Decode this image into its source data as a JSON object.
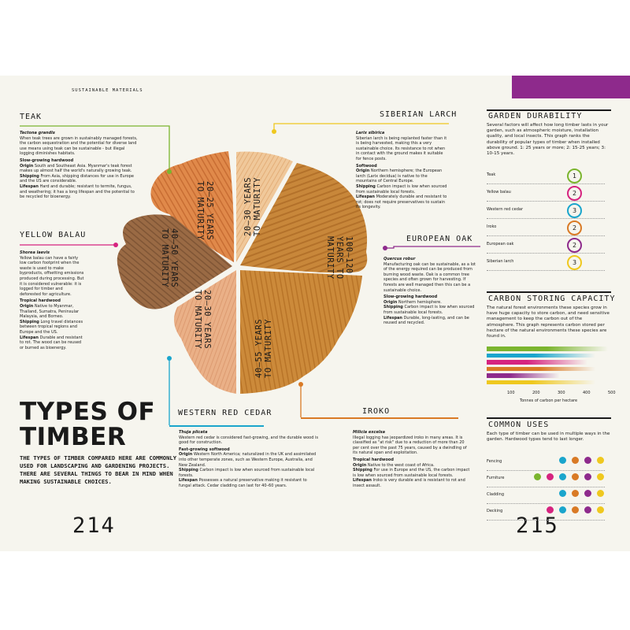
{
  "runner": "SUSTAINABLE MATERIALS",
  "page_left": "214",
  "page_right": "215",
  "title_line1": "TYPES OF",
  "title_line2": "TIMBER",
  "intro": "THE TYPES OF TIMBER COMPARED HERE ARE COMMONLY USED FOR LANDSCAPING AND GARDENING PROJECTS. THERE ARE SEVERAL THINGS TO BEAR IN MIND WHEN MAKING SUSTAINABLE CHOICES.",
  "wedges": [
    {
      "l1": "20–25 YEARS",
      "l2": "TO MATURITY"
    },
    {
      "l1": "20–30 YEARS",
      "l2": "TO MATURITY"
    },
    {
      "l1": "100–120",
      "l2": "YEARS TO",
      "l3": "MATURITY"
    },
    {
      "l1": "40–55 YEARS",
      "l2": "TO MATURITY"
    },
    {
      "l1": "20–30 YEARS",
      "l2": "TO MATURITY"
    },
    {
      "l1": "40–50 YEARS",
      "l2": "TO MATURITY"
    }
  ],
  "species": {
    "teak": {
      "name": "TEAK",
      "latin": "Tectona grandis",
      "desc": "When teak trees are grown in sustainably managed forests, the carbon sequestration and the potential for diverse land use means using teak can be sustainable - but illegal logging diminishes habitats.",
      "type": "Slow-growing hardwood",
      "origin_k": "Origin",
      "origin": "South and Southeast Asia. Myanmar's teak forest makes up almost half the world's naturally growing teak.",
      "ship_k": "Shipping",
      "ship": "From Asia, shipping distances for use in Europe and the US are considerable.",
      "life_k": "Lifespan",
      "life": "Hard and durable; resistant to termite, fungus, and weathering; it has a long lifespan and the potential to be recycled for bioenergy."
    },
    "balau": {
      "name": "YELLOW BALAU",
      "latin": "Shorea laevis",
      "desc": "Yellow balau can have a fairly low carbon footprint when the waste is used to make byproducts, offsetting emissions produced during processing. But it is considered vulnerable: it is logged for timber and deforested for agriculture.",
      "type": "Tropical hardwood",
      "origin_k": "Origin",
      "origin": "Native to Myanmar, Thailand, Sumatra, Peninsular Malaysia, and Borneo.",
      "ship_k": "Shipping",
      "ship": "Long travel distances between tropical regions and Europe and the US.",
      "life_k": "Lifespan",
      "life": "Durable and resistant to rot. The wood can be reused or burned as bioenergy."
    },
    "larch": {
      "name": "SIBERIAN LARCH",
      "latin": "Larix sibirica",
      "desc": "Siberian larch is being replanted faster than it is being harvested, making this a very sustainable choice. Its resistance to rot when in contact with the ground makes it suitable for fence posts.",
      "type": "Softwood",
      "origin_k": "Origin",
      "origin": "Northern hemisphere; the European larch (Larix decidua) is native to the mountains of Central Europe.",
      "ship_k": "Shipping",
      "ship": "Carbon impact is low when sourced from sustainable local forests.",
      "life_k": "Lifespan",
      "life": "Moderately durable and resistant to rot; does not require preservatives to sustain its longevity."
    },
    "oak": {
      "name": "EUROPEAN OAK",
      "latin": "Quercus robur",
      "desc": "Manufacturing oak can be sustainable, as a lot of the energy required can be produced from burning wood waste. Oak is a common tree species and often grown for harvesting. If forests are well managed then this can be a sustainable choice.",
      "type": "Slow-growing hardwood",
      "origin_k": "Origin",
      "origin": "Northern hemisphere.",
      "ship_k": "Shipping",
      "ship": "Carbon impact is low when sourced from sustainable local forests.",
      "life_k": "Lifespan",
      "life": "Durable, long-lasting, and can be reused and recycled."
    },
    "cedar": {
      "name": "WESTERN RED CEDAR",
      "latin": "Thuja plicata",
      "desc": "Western red cedar is considered fast-growing, and the durable wood is good for construction.",
      "type": "Fast-growing softwood",
      "origin_k": "Origin",
      "origin": "Western North America; naturalized in the UK and assimilated into other temperate zones, such as Western Europe, Australia, and New Zealand.",
      "ship_k": "Shipping",
      "ship": "Carbon impact is low when sourced from sustainable local forests.",
      "life_k": "Lifespan",
      "life": "Possesses a natural preservative making it resistant to fungal attack. Cedar cladding can last for 40–60 years."
    },
    "iroko": {
      "name": "IROKO",
      "latin": "Milicia excelsa",
      "desc": "Illegal logging has jeopardized iroko in many areas. It is classified as \"at risk\" due to a reduction of more than 20 per cent over the past 75 years, caused by a dwindling of its natural span and exploitation.",
      "type": "Tropical hardwood",
      "origin_k": "Origin",
      "origin": "Native to the west coast of Africa.",
      "ship_k": "Shipping",
      "ship": "For use in Europe and the US, the carbon impact is low when sourced from sustainable local forests.",
      "life_k": "Lifespan",
      "life": "Iroko is very durable and is resistant to rot and insect assault."
    }
  },
  "durability": {
    "title": "GARDEN DURABILITY",
    "text": "Several factors will affect how long timber lasts in your garden, such as atmospheric moisture, installation quality, and local insects. This graph ranks the durability of popular types of timber when installed above ground. 1: 25 years or more; 2: 15-25 years; 3: 10-15 years.",
    "rows": [
      {
        "label": "Teak",
        "rank": "1",
        "color": "#7bb52e"
      },
      {
        "label": "Yellow balau",
        "rank": "2",
        "color": "#d6237f"
      },
      {
        "label": "Western red cedar",
        "rank": "3",
        "color": "#1aa5cc"
      },
      {
        "label": "Iroko",
        "rank": "2",
        "color": "#d97a25"
      },
      {
        "label": "European oak",
        "rank": "2",
        "color": "#8e2a8c"
      },
      {
        "label": "Siberian larch",
        "rank": "3",
        "color": "#efc81f"
      }
    ]
  },
  "carbon": {
    "title": "CARBON STORING CAPACITY",
    "text": "The natural forest environments these species grow in have huge capacity to store carbon, and need sensitive management to keep the carbon out of the atmosphere. This graph represents carbon stored per hectare of the natural environments these species are found in.",
    "axis_label": "Tonnes of carbon per hectare",
    "ticks": [
      "100",
      "200",
      "300",
      "400",
      "500"
    ]
  },
  "chart_data": {
    "type": "bar",
    "title": "CARBON STORING CAPACITY",
    "xlabel": "Tonnes of carbon per hectare",
    "xlim": [
      0,
      500
    ],
    "series": [
      {
        "color": "#7bb52e",
        "value": 240,
        "fade_to": 480
      },
      {
        "color": "#1aa5cc",
        "value": 190,
        "fade_to": 430
      },
      {
        "color": "#d6237f",
        "value": 160,
        "fade_to": 400
      },
      {
        "color": "#d97a25",
        "value": 210,
        "fade_to": 430
      },
      {
        "color": "#8e2a8c",
        "value": 90,
        "fade_to": 290
      },
      {
        "color": "#efc81f",
        "value": 180,
        "fade_to": 430
      }
    ]
  },
  "uses": {
    "title": "COMMON USES",
    "text": "Each type of timber can be used in multiple ways in the garden. Hardwood types tend to last longer.",
    "rows": [
      {
        "label": "Fencing",
        "dots": [
          "",
          "",
          "#1aa5cc",
          "#d97a25",
          "#8e2a8c",
          "#efc81f"
        ]
      },
      {
        "label": "Furniture",
        "dots": [
          "#7bb52e",
          "#d6237f",
          "#1aa5cc",
          "#d97a25",
          "#8e2a8c",
          "#efc81f"
        ]
      },
      {
        "label": "Cladding",
        "dots": [
          "",
          "",
          "#1aa5cc",
          "#d97a25",
          "#8e2a8c",
          "#efc81f"
        ]
      },
      {
        "label": "Decking",
        "dots": [
          "",
          "#d6237f",
          "#1aa5cc",
          "#d97a25",
          "#8e2a8c",
          "#efc81f"
        ]
      }
    ]
  },
  "colors": {
    "green": "#7bb52e",
    "pink": "#d6237f",
    "blue": "#1aa5cc",
    "orange": "#d97a25",
    "purple": "#8e2a8c",
    "yellow": "#efc81f"
  }
}
